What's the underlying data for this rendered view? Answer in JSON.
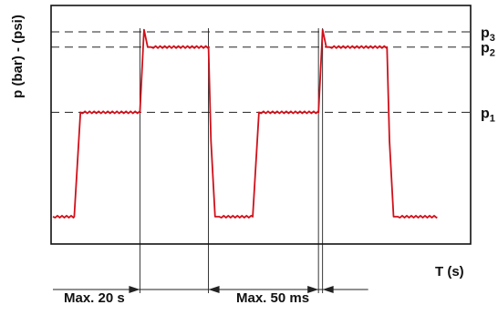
{
  "chart_data": {
    "type": "line",
    "title": "",
    "ylabel": "p (bar) - (psi)",
    "xlabel": "T (s)",
    "x_ticks": [],
    "y_ticks": [],
    "pressure_levels": [
      {
        "name": "p1",
        "base": "p",
        "sub": "1"
      },
      {
        "name": "p2",
        "base": "p",
        "sub": "2"
      },
      {
        "name": "p3",
        "base": "p",
        "sub": "3"
      }
    ],
    "levels": {
      "p0": 0.05,
      "p1": 0.53,
      "p2": 0.83,
      "p3": 0.9
    },
    "series": [
      {
        "color": "#d0101a",
        "x": [
          0,
          0.052,
          0.067,
          0.212,
          0.222,
          0.231,
          0.239,
          0.379,
          0.385,
          0.395,
          0.405,
          0.487,
          0.502,
          0.647,
          0.657,
          0.666,
          0.674,
          0.814,
          0.82,
          0.83,
          0.84,
          0.935
        ],
        "y": [
          0.05,
          0.05,
          0.53,
          0.53,
          0.91,
          0.83,
          0.83,
          0.83,
          0.4,
          0.05,
          0.05,
          0.05,
          0.53,
          0.53,
          0.91,
          0.83,
          0.83,
          0.83,
          0.4,
          0.05,
          0.05,
          0.05
        ]
      }
    ],
    "annotations": [
      {
        "label": "Max. 20 s",
        "from": 0.212,
        "to": 0.379
      },
      {
        "label": "Max. 50 ms",
        "from": 0.647,
        "to": 0.657
      }
    ],
    "grid": false
  }
}
